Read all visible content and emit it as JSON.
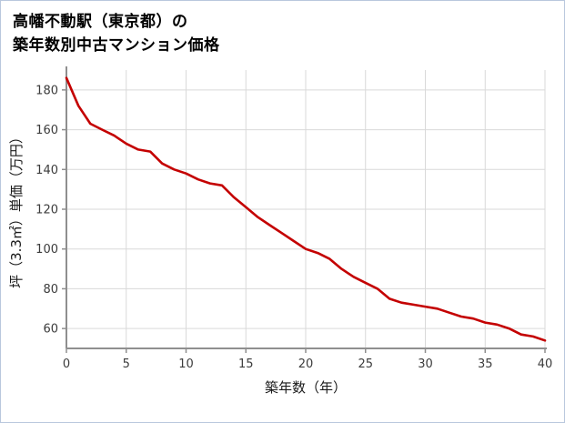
{
  "title": {
    "line1": "高幡不動駅（東京都）の",
    "line2": "築年数別中古マンション価格"
  },
  "chart_data": {
    "type": "line",
    "title": "高幡不動駅（東京都）の築年数別中古マンション価格",
    "xlabel": "築年数（年）",
    "ylabel": "坪（3.3㎡）単価（万円）",
    "x": [
      0,
      1,
      2,
      3,
      4,
      5,
      6,
      7,
      8,
      9,
      10,
      11,
      12,
      13,
      14,
      15,
      16,
      17,
      18,
      19,
      20,
      21,
      22,
      23,
      24,
      25,
      26,
      27,
      28,
      29,
      30,
      31,
      32,
      33,
      34,
      35,
      36,
      37,
      38,
      39,
      40
    ],
    "values": [
      186,
      172,
      163,
      160,
      157,
      153,
      150,
      149,
      143,
      140,
      138,
      135,
      133,
      132,
      126,
      121,
      116,
      112,
      108,
      104,
      100,
      98,
      95,
      90,
      86,
      83,
      80,
      75,
      73,
      72,
      71,
      70,
      68,
      66,
      65,
      63,
      62,
      60,
      57,
      56,
      54
    ],
    "xticks": [
      0,
      5,
      10,
      15,
      20,
      25,
      30,
      35,
      40
    ],
    "yticks": [
      60,
      80,
      100,
      120,
      140,
      160,
      180
    ],
    "xlim": [
      0,
      40
    ],
    "ylim": [
      50,
      190
    ],
    "grid": true,
    "legend": "none",
    "line_color": "#c40000",
    "grid_color": "#d9d9d9",
    "axis_color": "#8f8f8f",
    "tick_label_color": "#3c3c3c",
    "axis_label_color": "#1a1a1a"
  }
}
